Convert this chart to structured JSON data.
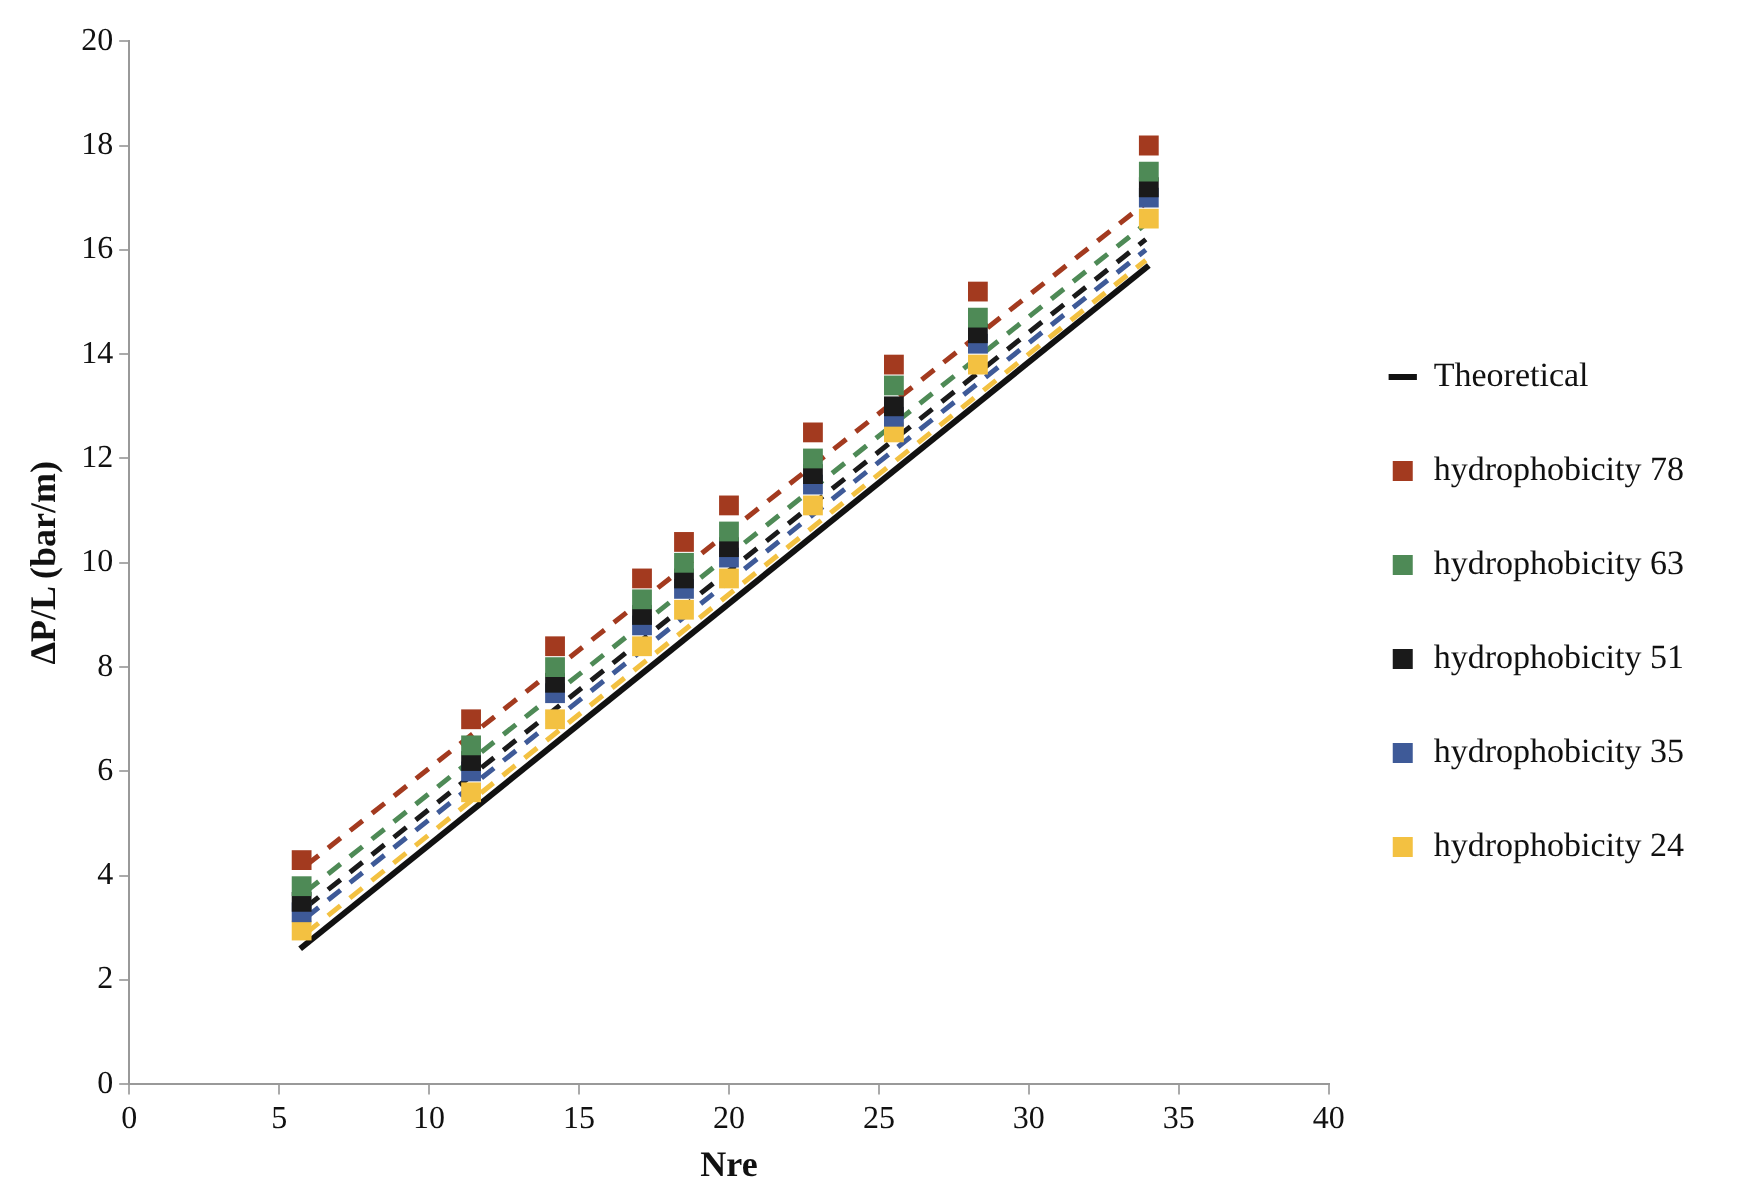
{
  "chart_data": {
    "type": "scatter",
    "xlabel": "Nre",
    "ylabel": "ΔP/L (bar/m)",
    "xlim": [
      0,
      40
    ],
    "xticks": [
      0,
      5,
      10,
      15,
      20,
      25,
      30,
      35,
      40
    ],
    "ylim": [
      0,
      20
    ],
    "yticks": [
      0,
      2,
      4,
      6,
      8,
      10,
      12,
      14,
      16,
      18,
      20
    ],
    "grid": false,
    "legend": "right",
    "series": [
      {
        "name": "Theoretical",
        "type": "line",
        "marker": "none",
        "line_style": "solid",
        "color": "#111111",
        "x": [
          5.7,
          34
        ],
        "values": [
          2.6,
          15.7
        ]
      },
      {
        "name": "hydrophobicity 78",
        "type": "scatter",
        "marker": "square",
        "color": "#a33a1f",
        "x": [
          5.75,
          11.4,
          14.2,
          17.1,
          18.5,
          20.0,
          22.8,
          25.5,
          28.3,
          34.0
        ],
        "values": [
          4.3,
          7.0,
          8.4,
          9.7,
          10.4,
          11.1,
          12.5,
          13.8,
          15.2,
          18.0
        ]
      },
      {
        "name": "hydrophobicity 63",
        "type": "scatter",
        "marker": "square",
        "color": "#4e8a56",
        "x": [
          5.75,
          11.4,
          14.2,
          17.1,
          18.5,
          20.0,
          22.8,
          25.5,
          28.3,
          34.0
        ],
        "values": [
          3.8,
          6.5,
          8.0,
          9.3,
          10.0,
          10.6,
          12.0,
          13.4,
          14.7,
          17.5
        ]
      },
      {
        "name": "hydrophobicity 51",
        "type": "scatter",
        "marker": "square",
        "color": "#1a1a1a",
        "x": [
          5.75,
          11.4,
          14.2,
          17.1,
          18.5,
          20.0,
          22.8,
          25.5,
          28.3,
          34.0
        ],
        "values": [
          3.5,
          6.2,
          7.7,
          9.0,
          9.7,
          10.3,
          11.7,
          13.0,
          14.4,
          17.2
        ]
      },
      {
        "name": "hydrophobicity 35",
        "type": "scatter",
        "marker": "square",
        "color": "#3e5a98",
        "x": [
          5.75,
          11.4,
          14.2,
          17.1,
          18.5,
          20.0,
          22.8,
          25.5,
          28.3,
          34.0
        ],
        "values": [
          3.3,
          6.0,
          7.5,
          8.8,
          9.5,
          10.1,
          11.5,
          12.8,
          14.2,
          17.0
        ]
      },
      {
        "name": "hydrophobicity 24",
        "type": "scatter",
        "marker": "square",
        "color": "#f3c141",
        "x": [
          5.75,
          11.4,
          14.2,
          17.1,
          18.5,
          20.0,
          22.8,
          25.5,
          28.3,
          34.0
        ],
        "values": [
          2.95,
          5.6,
          7.0,
          8.4,
          9.1,
          9.7,
          11.1,
          12.5,
          13.8,
          16.6
        ]
      },
      {
        "type": "line",
        "marker": "none",
        "line_style": "dashed",
        "color": "#a33a1f",
        "x": [
          5.9,
          33.9
        ],
        "values": [
          4.2,
          16.9
        ]
      },
      {
        "type": "line",
        "marker": "none",
        "line_style": "dashed",
        "color": "#4e8a56",
        "x": [
          5.9,
          33.9
        ],
        "values": [
          3.7,
          16.5
        ]
      },
      {
        "type": "line",
        "marker": "none",
        "line_style": "dashed",
        "color": "#1a1a1a",
        "x": [
          5.9,
          33.9
        ],
        "values": [
          3.4,
          16.2
        ]
      },
      {
        "type": "line",
        "marker": "none",
        "line_style": "dashed",
        "color": "#3e5a98",
        "x": [
          5.9,
          33.9
        ],
        "values": [
          3.2,
          16.0
        ]
      },
      {
        "type": "line",
        "marker": "none",
        "line_style": "dashed",
        "color": "#f3c141",
        "x": [
          5.9,
          33.9
        ],
        "values": [
          2.9,
          15.8
        ]
      }
    ]
  }
}
